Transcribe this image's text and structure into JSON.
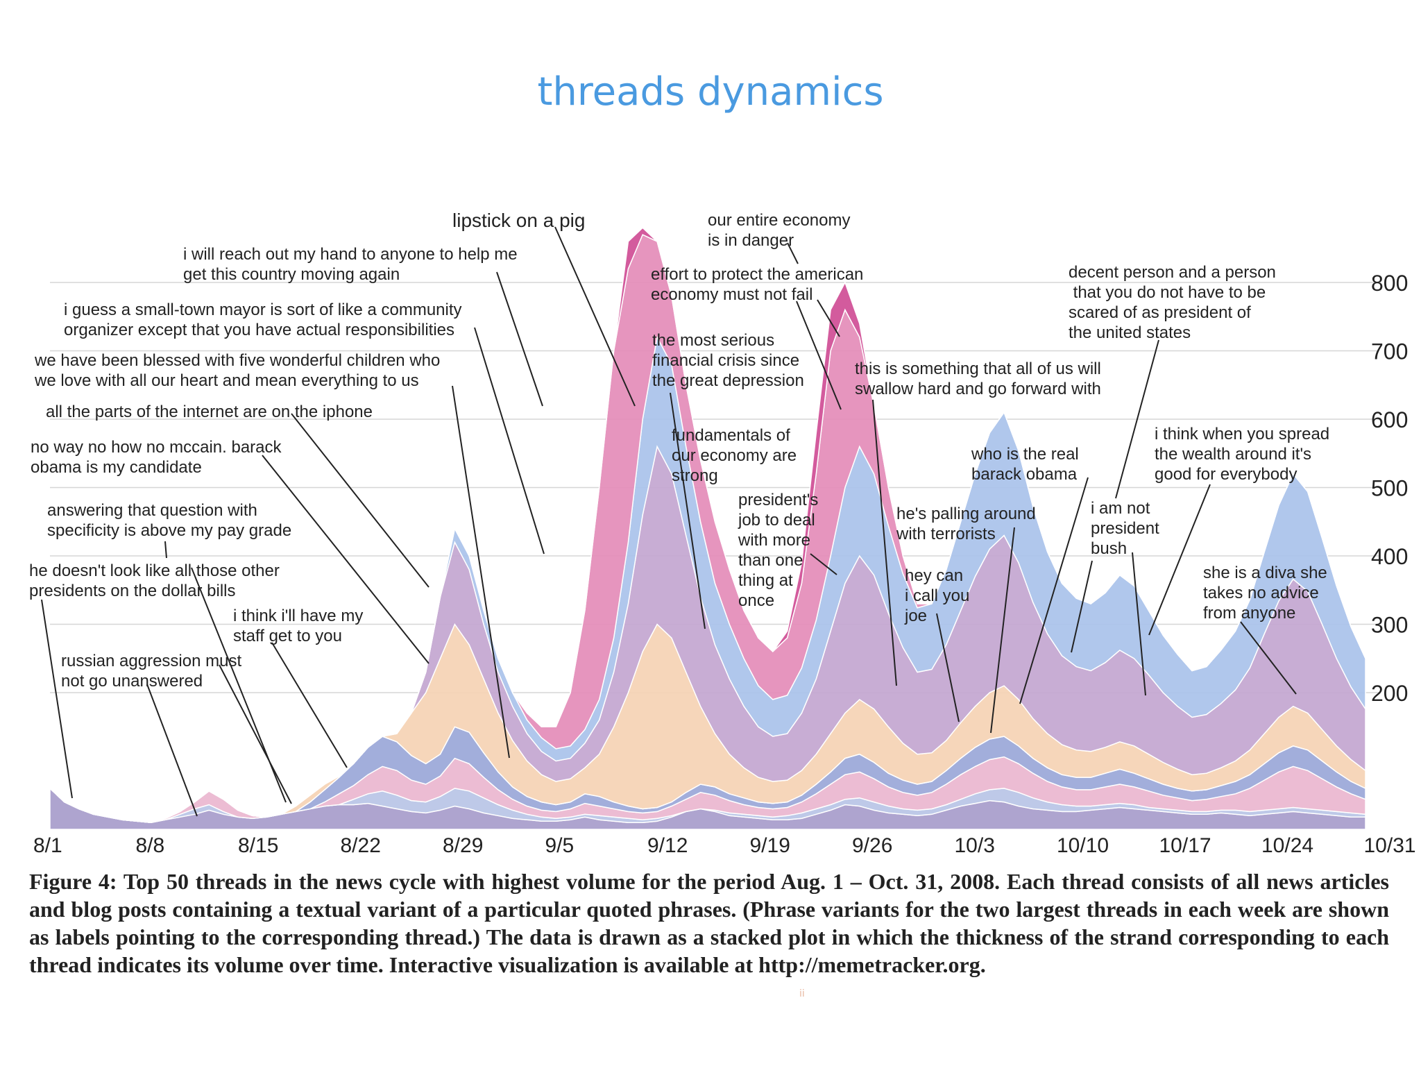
{
  "slide": {
    "title": "threads dynamics",
    "caption": "Figure 4: Top 50 threads in the news cycle with highest volume for the period Aug. 1 – Oct. 31, 2008. Each thread consists of all news articles and blog posts containing a textual variant of a particular quoted phrases. (Phrase variants for the two largest threads in each week are shown as labels pointing to the corresponding thread.) The data is drawn as a stacked plot in which the thickness of the strand corresponding to each thread indicates its volume over time. Interactive visualization is available at http://memetracker.org."
  },
  "chart_data": {
    "type": "area",
    "x_tick_labels": [
      "8/1",
      "8/8",
      "8/15",
      "8/22",
      "8/29",
      "9/5",
      "9/12",
      "9/19",
      "9/26",
      "10/3",
      "10/10",
      "10/17",
      "10/24",
      "10/31"
    ],
    "y_ticks": [
      200,
      300,
      400,
      500,
      600,
      700,
      800
    ],
    "y_axis_position": "right",
    "ylim": [
      0,
      880
    ],
    "grid": true,
    "x_day_index": [
      0,
      1,
      2,
      3,
      4,
      5,
      6,
      7,
      8,
      9,
      10,
      11,
      12,
      13,
      14,
      15,
      16,
      17,
      18,
      19,
      20,
      21,
      22,
      23,
      24,
      25,
      26,
      27,
      28,
      29,
      30,
      31,
      32,
      33,
      34,
      35,
      36,
      37,
      38,
      39,
      40,
      41,
      42,
      43,
      44,
      45,
      46,
      47,
      48,
      49,
      50,
      51,
      52,
      53,
      54,
      55,
      56,
      57,
      58,
      59,
      60,
      61,
      62,
      63,
      64,
      65,
      66,
      67,
      68,
      69,
      70,
      71,
      72,
      73,
      74,
      75,
      76,
      77,
      78,
      79,
      80,
      81,
      82,
      83,
      84,
      85,
      86,
      87,
      88,
      89,
      90,
      91
    ],
    "series_note_colors": [
      "#a79ccb",
      "#b9c4e6",
      "#eab6cf",
      "#9aa7d8",
      "#f1c6dc",
      "#f5d2b4",
      "#c3a6d0",
      "#a9c2ea",
      "#e48cb8",
      "#cf4d95",
      "#c796c6",
      "#e7a3bd"
    ],
    "series": [
      {
        "values": [
          60,
          40,
          30,
          22,
          18,
          14,
          12,
          10,
          14,
          18,
          22,
          28,
          22,
          18,
          16,
          18,
          22,
          26,
          30,
          34,
          36,
          36,
          38,
          34,
          30,
          26,
          24,
          28,
          34,
          30,
          24,
          20,
          16,
          14,
          12,
          12,
          14,
          18,
          14,
          12,
          10,
          10,
          12,
          18,
          26,
          30,
          26,
          20,
          18,
          16,
          14,
          14,
          16,
          22,
          28,
          36,
          34,
          28,
          24,
          22,
          20,
          22,
          28,
          34,
          38,
          42,
          40,
          34,
          30,
          28,
          26,
          26,
          28,
          30,
          32,
          30,
          28,
          26,
          24,
          22,
          22,
          24,
          22,
          20,
          22,
          24,
          26,
          24,
          22,
          20,
          18,
          18
        ]
      },
      {
        "values": [
          30,
          20,
          14,
          10,
          8,
          8,
          8,
          8,
          14,
          22,
          30,
          36,
          26,
          16,
          12,
          10,
          12,
          16,
          22,
          28,
          36,
          44,
          52,
          56,
          50,
          42,
          40,
          48,
          60,
          56,
          46,
          36,
          28,
          22,
          18,
          16,
          18,
          22,
          20,
          18,
          16,
          14,
          16,
          20,
          26,
          30,
          28,
          24,
          22,
          20,
          18,
          20,
          24,
          30,
          36,
          44,
          46,
          40,
          34,
          30,
          28,
          30,
          36,
          44,
          52,
          58,
          60,
          54,
          46,
          40,
          36,
          34,
          34,
          36,
          38,
          36,
          32,
          30,
          28,
          26,
          26,
          28,
          28,
          26,
          28,
          30,
          32,
          30,
          28,
          26,
          24,
          22
        ]
      },
      {
        "values": [
          40,
          30,
          22,
          16,
          12,
          10,
          10,
          10,
          16,
          26,
          40,
          56,
          44,
          28,
          20,
          16,
          18,
          22,
          30,
          40,
          52,
          64,
          80,
          92,
          86,
          72,
          66,
          78,
          104,
          96,
          76,
          58,
          44,
          34,
          28,
          26,
          30,
          38,
          34,
          30,
          26,
          24,
          26,
          34,
          44,
          54,
          50,
          42,
          36,
          32,
          30,
          32,
          40,
          52,
          66,
          80,
          84,
          74,
          62,
          54,
          50,
          54,
          66,
          80,
          92,
          102,
          106,
          96,
          82,
          70,
          62,
          58,
          58,
          62,
          66,
          62,
          56,
          50,
          46,
          42,
          44,
          48,
          52,
          60,
          72,
          84,
          92,
          86,
          74,
          62,
          52,
          44
        ]
      },
      {
        "values": [
          20,
          14,
          10,
          8,
          6,
          6,
          6,
          6,
          10,
          16,
          26,
          40,
          32,
          22,
          16,
          14,
          18,
          26,
          40,
          58,
          76,
          96,
          120,
          136,
          128,
          108,
          96,
          110,
          150,
          142,
          112,
          84,
          62,
          48,
          40,
          36,
          40,
          52,
          48,
          40,
          34,
          30,
          32,
          40,
          54,
          66,
          62,
          52,
          46,
          40,
          38,
          40,
          50,
          66,
          84,
          104,
          110,
          98,
          82,
          72,
          66,
          70,
          86,
          104,
          120,
          132,
          136,
          122,
          104,
          90,
          80,
          76,
          76,
          82,
          88,
          82,
          74,
          66,
          60,
          56,
          58,
          64,
          70,
          80,
          96,
          112,
          122,
          116,
          100,
          84,
          70,
          60
        ]
      },
      {
        "values": [
          20,
          14,
          10,
          8,
          6,
          6,
          6,
          6,
          10,
          16,
          26,
          40,
          32,
          22,
          16,
          14,
          18,
          26,
          40,
          58,
          76,
          96,
          120,
          136,
          128,
          108,
          96,
          110,
          150,
          142,
          112,
          84,
          62,
          48,
          40,
          36,
          40,
          52,
          48,
          40,
          34,
          30,
          32,
          40,
          54,
          66,
          62,
          52,
          46,
          40,
          38,
          40,
          50,
          66,
          84,
          104,
          110,
          98,
          82,
          72,
          66,
          70,
          86,
          104,
          120,
          132,
          136,
          122,
          104,
          90,
          80,
          76,
          76,
          82,
          88,
          82,
          74,
          66,
          60,
          56,
          58,
          64,
          70,
          80,
          96,
          112,
          122,
          116,
          100,
          84,
          70,
          60
        ]
      },
      {
        "values": [
          10,
          8,
          6,
          6,
          6,
          6,
          6,
          8,
          12,
          20,
          30,
          38,
          30,
          20,
          16,
          16,
          22,
          34,
          50,
          66,
          78,
          90,
          106,
          120,
          140,
          170,
          200,
          250,
          300,
          270,
          220,
          170,
          130,
          100,
          80,
          70,
          74,
          90,
          110,
          150,
          200,
          260,
          300,
          280,
          230,
          180,
          140,
          110,
          90,
          76,
          70,
          72,
          86,
          110,
          140,
          170,
          190,
          176,
          150,
          126,
          110,
          112,
          130,
          156,
          180,
          200,
          210,
          190,
          162,
          140,
          124,
          116,
          114,
          120,
          128,
          122,
          110,
          98,
          88,
          80,
          82,
          90,
          100,
          116,
          140,
          164,
          180,
          170,
          146,
          122,
          102,
          86
        ]
      },
      {
        "values": [
          10,
          6,
          4,
          4,
          4,
          4,
          4,
          4,
          8,
          14,
          22,
          30,
          24,
          16,
          12,
          12,
          16,
          24,
          36,
          50,
          62,
          72,
          84,
          96,
          120,
          170,
          230,
          340,
          420,
          380,
          300,
          230,
          180,
          140,
          114,
          100,
          104,
          126,
          160,
          230,
          330,
          460,
          560,
          520,
          430,
          340,
          270,
          220,
          180,
          150,
          136,
          140,
          170,
          220,
          290,
          360,
          400,
          372,
          316,
          266,
          230,
          234,
          270,
          320,
          370,
          410,
          430,
          390,
          332,
          286,
          254,
          238,
          232,
          244,
          262,
          250,
          226,
          200,
          180,
          164,
          168,
          184,
          204,
          236,
          286,
          334,
          366,
          348,
          300,
          250,
          208,
          176
        ]
      },
      {
        "values": [
          8,
          4,
          3,
          3,
          3,
          3,
          3,
          3,
          6,
          10,
          16,
          22,
          18,
          12,
          10,
          10,
          12,
          18,
          26,
          36,
          44,
          52,
          60,
          68,
          90,
          140,
          220,
          340,
          440,
          400,
          320,
          250,
          200,
          160,
          134,
          118,
          122,
          146,
          190,
          280,
          420,
          600,
          720,
          680,
          560,
          450,
          360,
          300,
          250,
          210,
          190,
          196,
          236,
          306,
          400,
          500,
          560,
          520,
          444,
          374,
          324,
          330,
          380,
          450,
          520,
          580,
          610,
          554,
          472,
          406,
          360,
          338,
          330,
          346,
          372,
          356,
          320,
          284,
          256,
          232,
          238,
          262,
          290,
          336,
          406,
          474,
          520,
          494,
          426,
          356,
          296,
          250
        ]
      },
      {
        "values": [
          6,
          3,
          2,
          2,
          2,
          2,
          2,
          2,
          4,
          8,
          12,
          16,
          14,
          10,
          8,
          8,
          10,
          14,
          20,
          28,
          34,
          40,
          46,
          52,
          70,
          110,
          180,
          290,
          400,
          370,
          300,
          240,
          200,
          170,
          150,
          150,
          200,
          320,
          500,
          700,
          820,
          870,
          860,
          780,
          650,
          540,
          450,
          380,
          320,
          280,
          260,
          280,
          360,
          520,
          700,
          760,
          720,
          620,
          500,
          400,
          330,
          320,
          350,
          400,
          440,
          470,
          480,
          440,
          380,
          330,
          300,
          290,
          290,
          300,
          320,
          310,
          290,
          260,
          240,
          220,
          230,
          250,
          270,
          300,
          340,
          380,
          400,
          380,
          340,
          300,
          260,
          230
        ]
      },
      {
        "values": [
          4,
          2,
          2,
          2,
          2,
          2,
          2,
          2,
          3,
          6,
          8,
          10,
          10,
          8,
          6,
          6,
          8,
          10,
          14,
          20,
          24,
          28,
          32,
          36,
          48,
          76,
          124,
          200,
          280,
          264,
          220,
          180,
          156,
          136,
          124,
          128,
          180,
          300,
          480,
          700,
          860,
          880,
          860,
          770,
          640,
          520,
          420,
          350,
          300,
          270,
          260,
          290,
          390,
          580,
          760,
          800,
          740,
          620,
          490,
          390,
          320,
          310,
          340,
          390,
          430,
          460,
          470,
          430,
          370,
          320,
          290,
          280,
          280,
          290,
          310,
          300,
          280,
          250,
          230,
          210,
          220,
          240,
          260,
          290,
          330,
          370,
          390,
          370,
          330,
          290,
          250,
          220
        ]
      }
    ]
  },
  "annotations": [
    {
      "lines": [
        "lipstick on a pig"
      ]
    },
    {
      "lines": [
        "our entire economy",
        "is in danger"
      ]
    },
    {
      "lines": [
        "i will reach out my hand to anyone to help me",
        "get this country moving again"
      ]
    },
    {
      "lines": [
        "effort to protect the american",
        "economy must not fail"
      ]
    },
    {
      "lines": [
        "decent person and a person",
        " that you do not have to be",
        "scared of as president of",
        "the united states"
      ]
    },
    {
      "lines": [
        "i guess a small-town mayor is sort of like a community",
        "organizer except that you have actual responsibilities"
      ]
    },
    {
      "lines": [
        "the most serious",
        "financial crisis since",
        "the great depression"
      ]
    },
    {
      "lines": [
        "we have been blessed with five wonderful children who",
        "we love with all our heart and mean everything to us"
      ]
    },
    {
      "lines": [
        "this is something that all of us will",
        "swallow hard and go forward with"
      ]
    },
    {
      "lines": [
        "all the parts of the internet are on the iphone"
      ]
    },
    {
      "lines": [
        "fundamentals of",
        "our economy are",
        "strong"
      ]
    },
    {
      "lines": [
        "i think when you spread",
        "the wealth around it's",
        "good for everybody"
      ]
    },
    {
      "lines": [
        "no way no how no mccain. barack",
        "obama is my candidate"
      ]
    },
    {
      "lines": [
        "who is the real",
        "barack obama"
      ]
    },
    {
      "lines": [
        "president's",
        "job to deal",
        "with more",
        "than one",
        "thing at",
        "once"
      ]
    },
    {
      "lines": [
        "answering that question with",
        "specificity is above my pay grade"
      ]
    },
    {
      "lines": [
        "he's palling around",
        "with terrorists"
      ]
    },
    {
      "lines": [
        "i am not",
        "president",
        "bush"
      ]
    },
    {
      "lines": [
        "he doesn't look like all those other",
        "presidents on the dollar bills"
      ]
    },
    {
      "lines": [
        "hey can",
        "i call you",
        "joe"
      ]
    },
    {
      "lines": [
        "she is a diva she",
        "takes no advice",
        "from anyone"
      ]
    },
    {
      "lines": [
        "i think i'll have my",
        "staff get to you"
      ]
    },
    {
      "lines": [
        "russian aggression must",
        "not go unanswered"
      ]
    }
  ]
}
